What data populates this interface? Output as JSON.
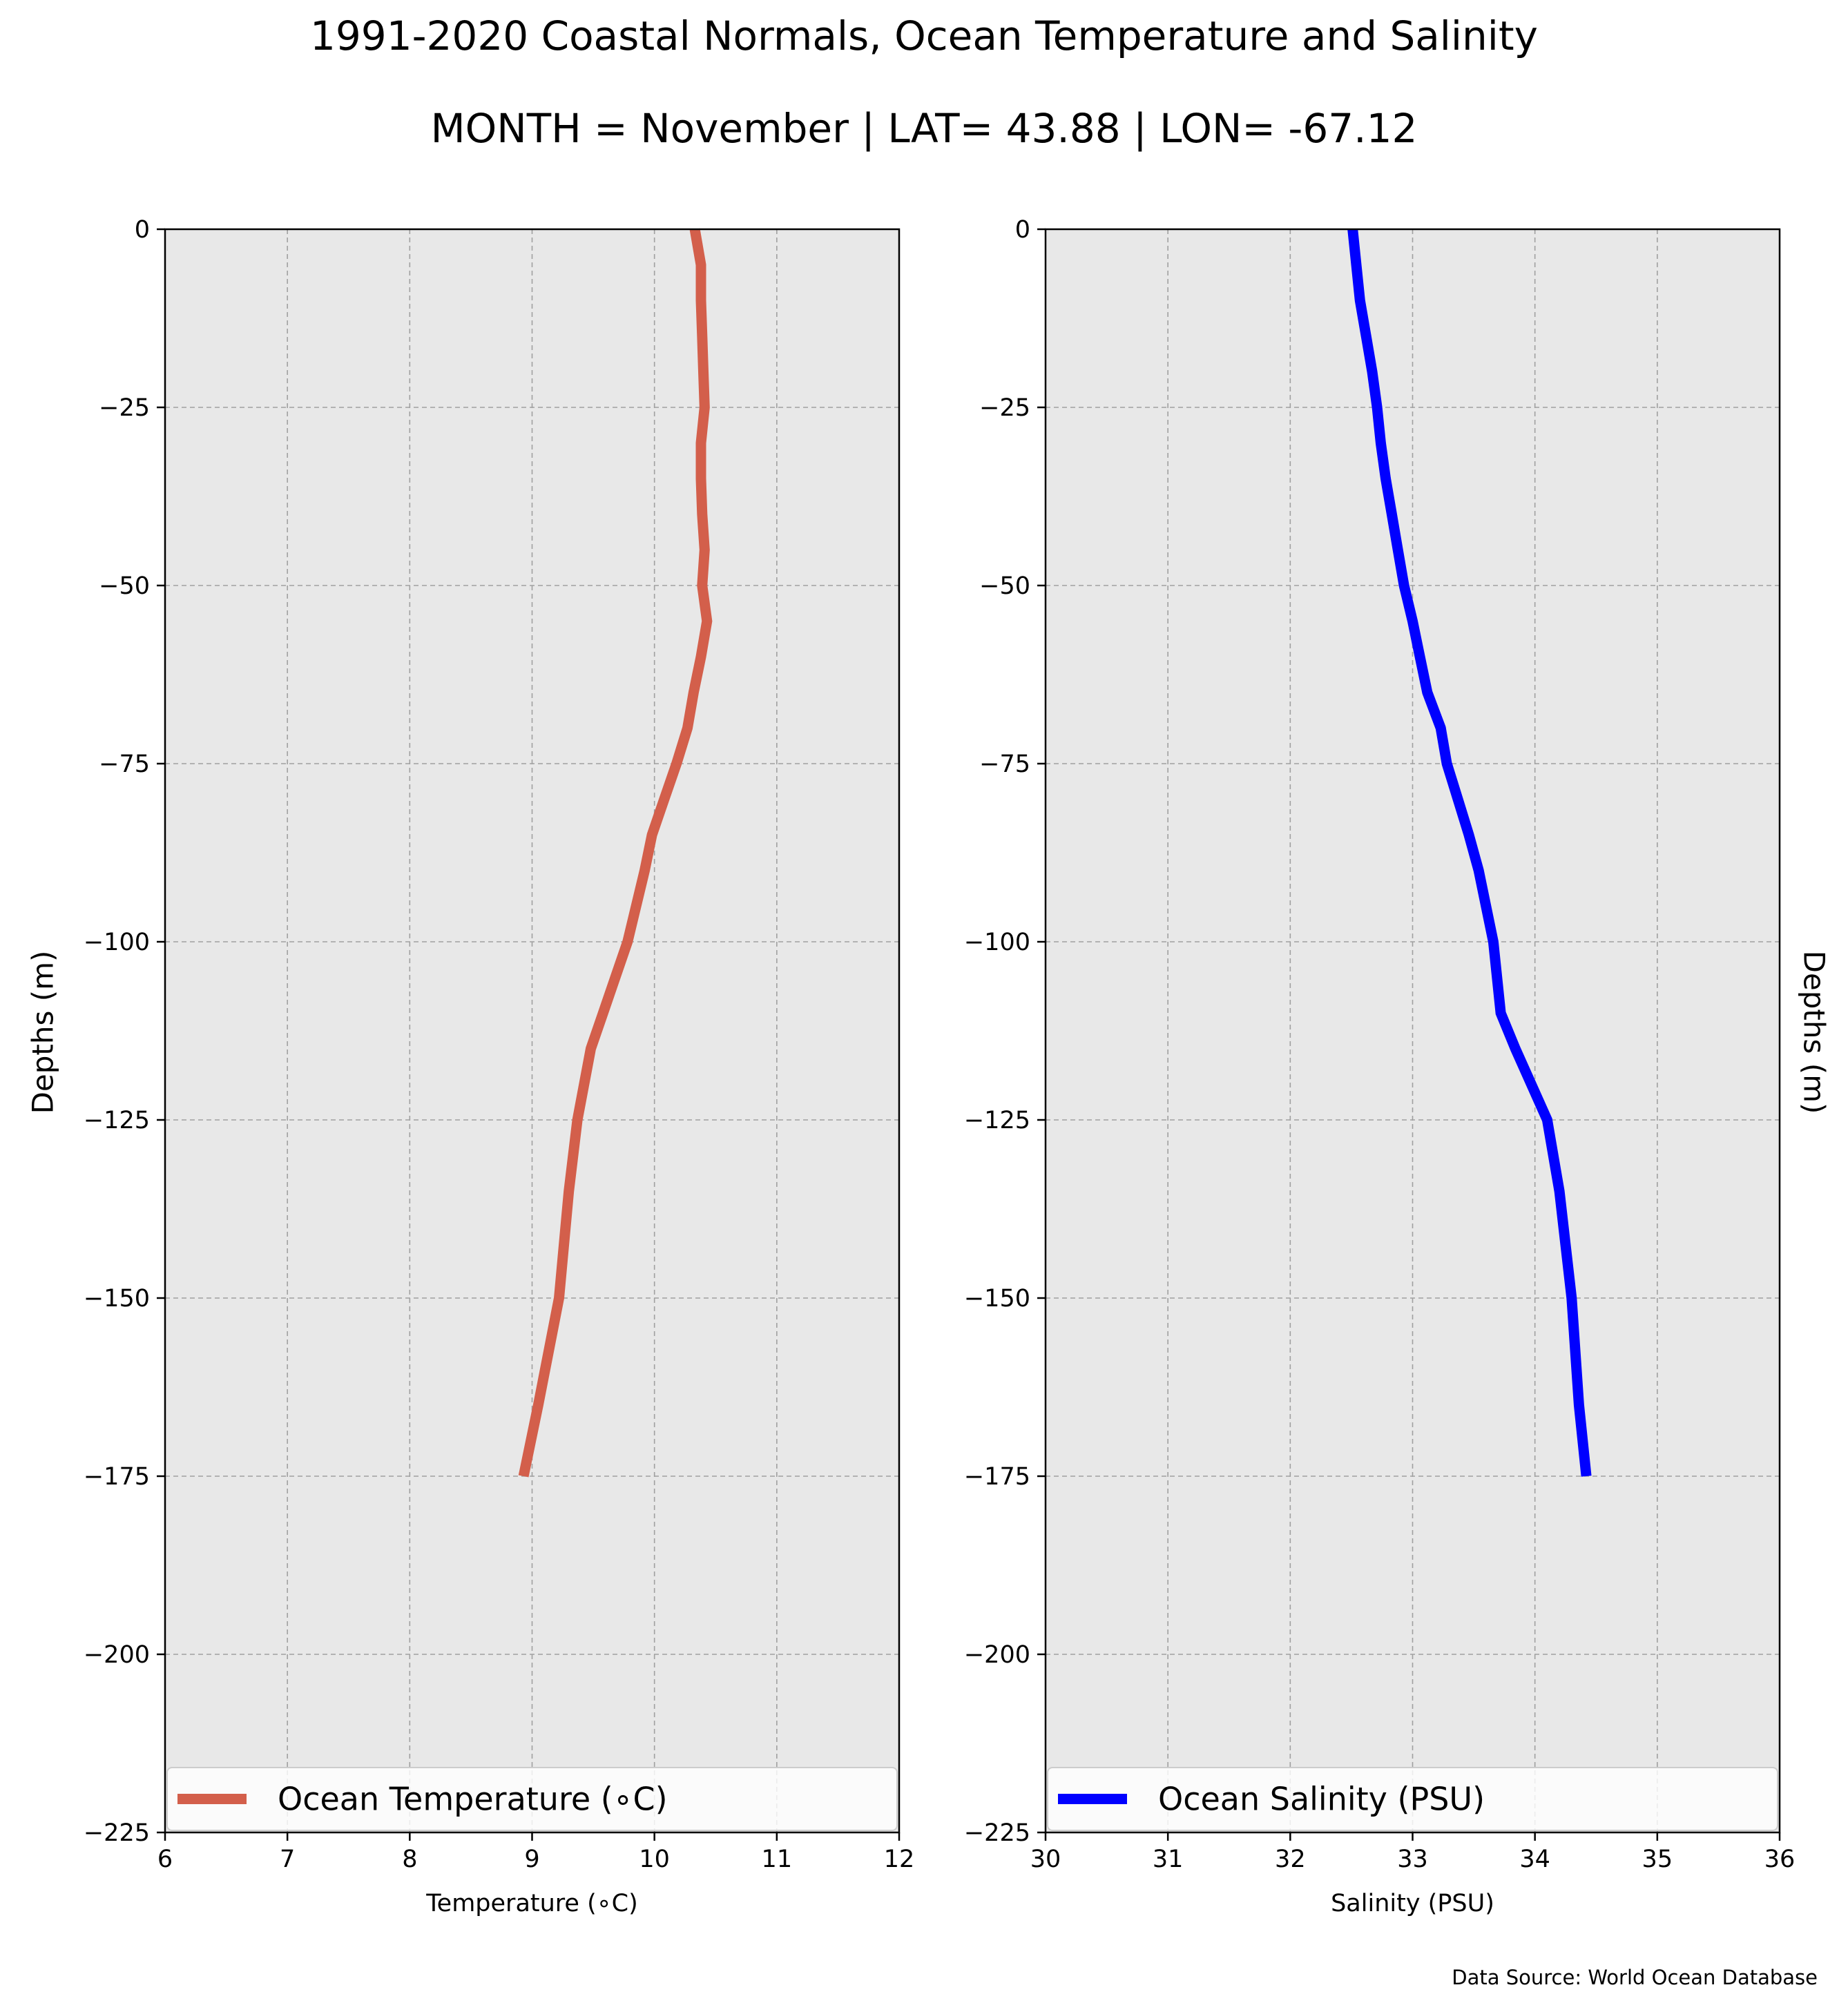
{
  "title": "1991-2020 Coastal Normals, Ocean Temperature and Salinity",
  "subtitle": "MONTH = November | LAT= 43.88 | LON= -67.12",
  "source": "Data Source: World Ocean Database",
  "colors": {
    "temperature": "#d35f4b",
    "salinity": "#0000ff",
    "panel_bg": "#e8e8e8",
    "grid": "#a0a0a0"
  },
  "chart_data": [
    {
      "type": "line",
      "panel": "left",
      "xlabel": "Temperature ($^\\circ$C)",
      "xlabel_display": "Temperature (∘C)",
      "ylabel": "Depths (m)",
      "xlim": [
        6,
        12
      ],
      "ylim": [
        -225,
        0
      ],
      "xticks": [
        "6",
        "7",
        "8",
        "9",
        "10",
        "11",
        "12"
      ],
      "yticks": [
        "0",
        "−25",
        "−50",
        "−75",
        "−100",
        "−125",
        "−150",
        "−175",
        "−200",
        "−225"
      ],
      "grid": true,
      "legend_placement": "lower-center",
      "series": [
        {
          "name": "Ocean Temperature (∘C)",
          "color": "#d35f4b",
          "x": [
            10.33,
            10.38,
            10.38,
            10.39,
            10.4,
            10.41,
            10.38,
            10.38,
            10.39,
            10.41,
            10.39,
            10.43,
            10.38,
            10.32,
            10.27,
            10.18,
            10.08,
            9.98,
            9.92,
            9.78,
            9.68,
            9.58,
            9.48,
            9.37,
            9.3,
            9.22,
            9.05,
            8.93
          ],
          "y": [
            0,
            -5,
            -10,
            -15,
            -20,
            -25,
            -30,
            -35,
            -40,
            -45,
            -50,
            -55,
            -60,
            -65,
            -70,
            -75,
            -80,
            -85,
            -90,
            -100,
            -105,
            -110,
            -115,
            -125,
            -135,
            -150,
            -165,
            -175
          ]
        }
      ]
    },
    {
      "type": "line",
      "panel": "right",
      "xlabel": "Salinity (PSU)",
      "ylabel": "Depths (m)",
      "xlim": [
        30,
        36
      ],
      "ylim": [
        -225,
        0
      ],
      "xticks": [
        "30",
        "31",
        "32",
        "33",
        "34",
        "35",
        "36"
      ],
      "yticks": [
        "0",
        "−25",
        "−50",
        "−75",
        "−100",
        "−125",
        "−150",
        "−175",
        "−200",
        "−225"
      ],
      "grid": true,
      "legend_placement": "lower-center",
      "series": [
        {
          "name": "Ocean Salinity (PSU)",
          "color": "#0000ff",
          "x": [
            32.51,
            32.54,
            32.57,
            32.62,
            32.67,
            32.71,
            32.74,
            32.78,
            32.83,
            32.88,
            32.93,
            33.0,
            33.06,
            33.12,
            33.23,
            33.28,
            33.37,
            33.46,
            33.54,
            33.6,
            33.66,
            33.72,
            33.84,
            33.97,
            34.1,
            34.2,
            34.3,
            34.36,
            34.42
          ],
          "y": [
            0,
            -5,
            -10,
            -15,
            -20,
            -25,
            -30,
            -35,
            -40,
            -45,
            -50,
            -55,
            -60,
            -65,
            -70,
            -75,
            -80,
            -85,
            -90,
            -95,
            -100,
            -110,
            -115,
            -120,
            -125,
            -135,
            -150,
            -165,
            -175
          ]
        }
      ]
    }
  ]
}
